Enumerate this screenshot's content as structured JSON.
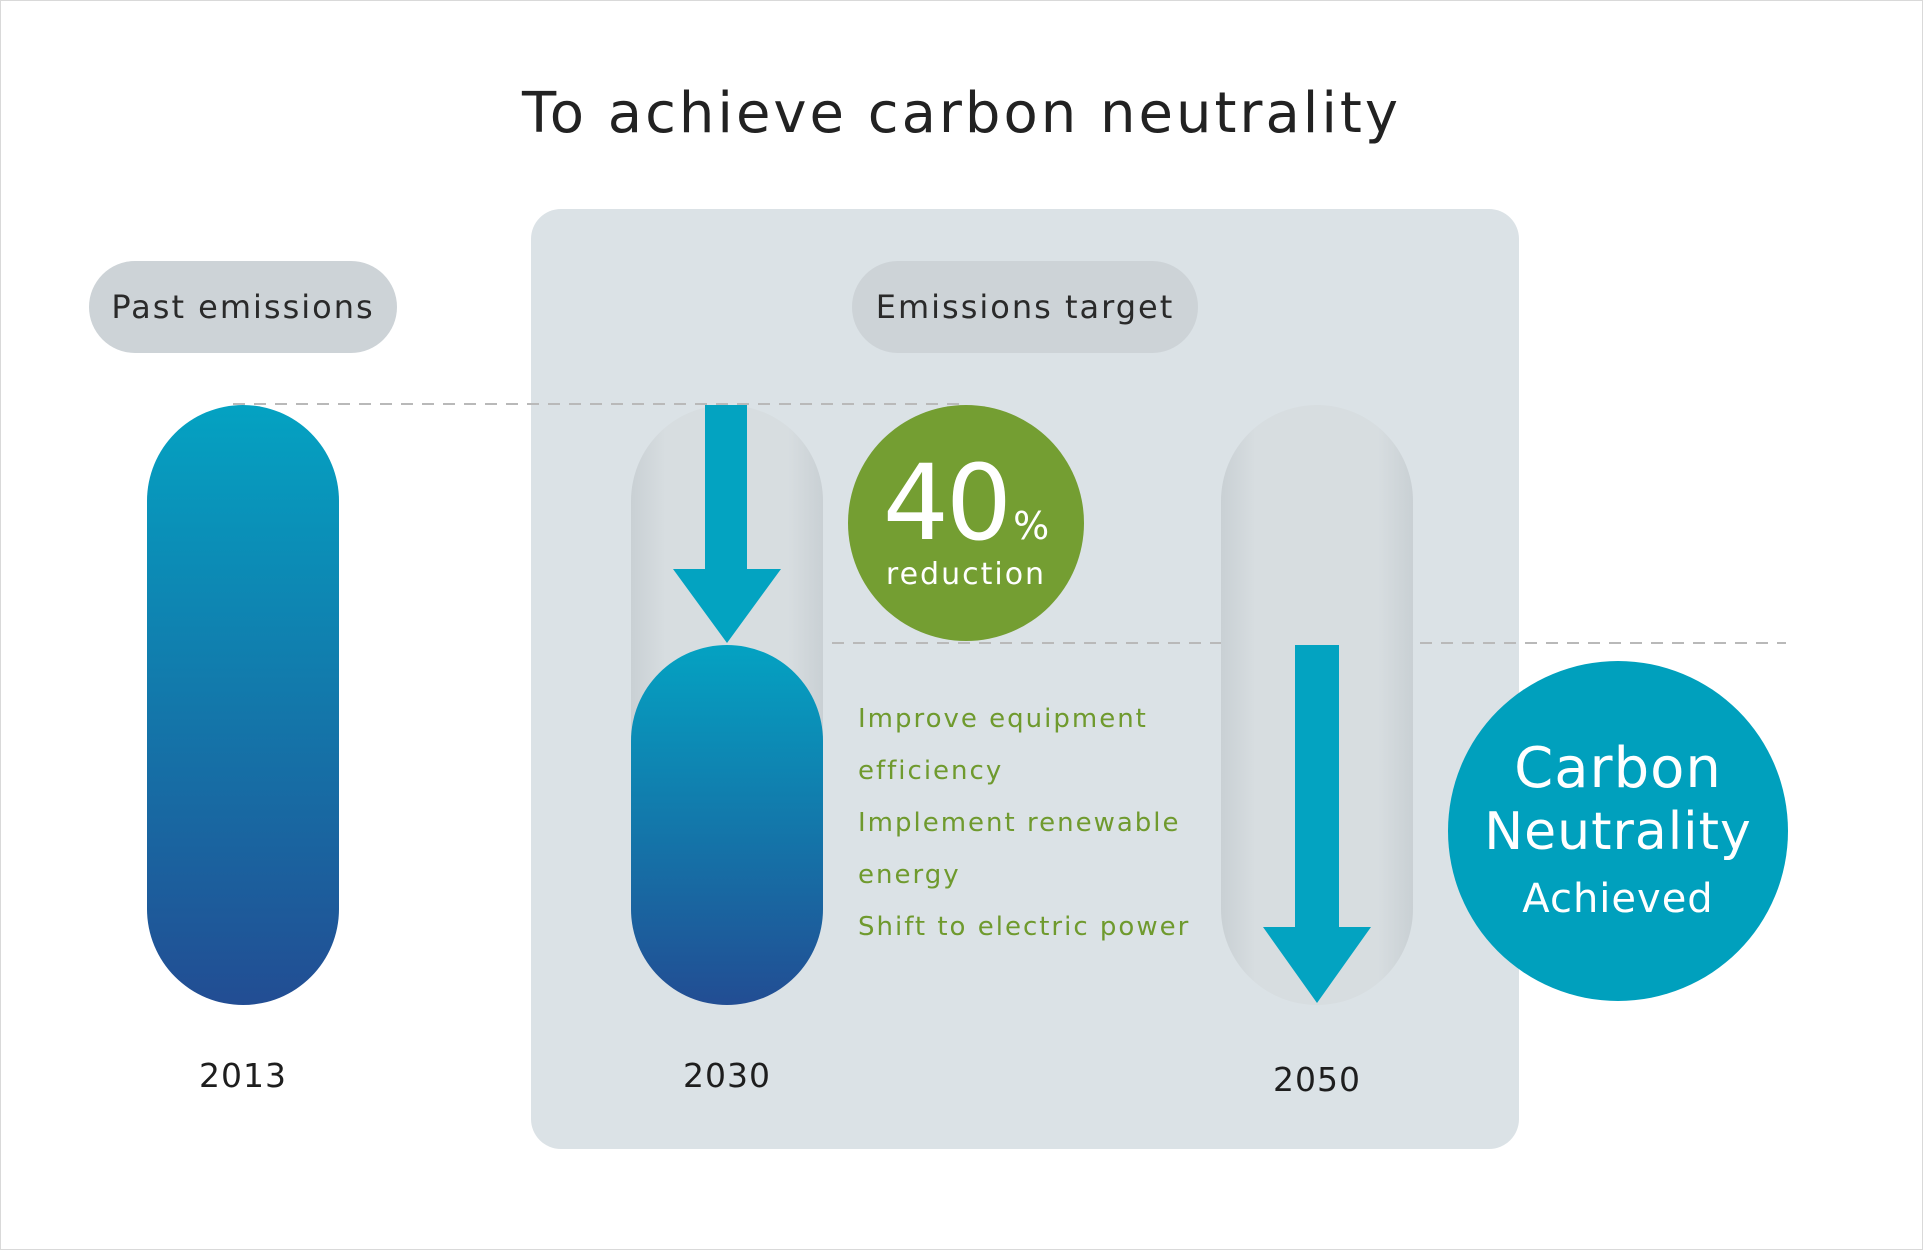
{
  "title": "To achieve carbon neutrality",
  "labels": {
    "past": "Past emissions",
    "target": "Emissions target"
  },
  "years": {
    "y2013": "2013",
    "y2030": "2030",
    "y2050": "2050"
  },
  "reduction": {
    "value": "40",
    "unit": "%",
    "label": "reduction"
  },
  "actions": [
    "Improve equipment",
    "efficiency",
    "Implement renewable",
    "energy",
    "Shift to electric power"
  ],
  "neutrality": {
    "line1": "Carbon",
    "line2": "Neutrality",
    "line3": "Achieved"
  },
  "emission_levels": {
    "y2013": 1.0,
    "y2030": 0.6,
    "y2050": 0.0
  },
  "colors": {
    "bar_top": "#04a2c2",
    "bar_bottom": "#224d93",
    "arrow": "#03a3c1",
    "green": "#749e32",
    "cyan": "#00a0bd",
    "panel": "#dbe2e6",
    "pill": "#cdd3d7"
  }
}
